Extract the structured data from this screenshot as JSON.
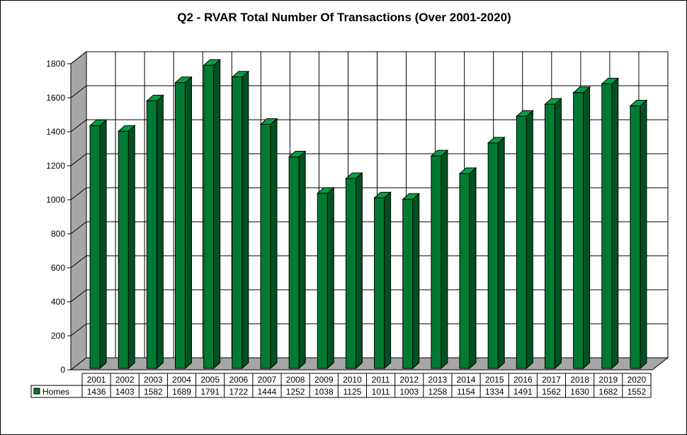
{
  "chart_data": {
    "type": "bar",
    "title": "Q2 - RVAR  Total Number Of Transactions (Over 2001-2020)",
    "categories": [
      "2001",
      "2002",
      "2003",
      "2004",
      "2005",
      "2006",
      "2007",
      "2008",
      "2009",
      "2010",
      "2011",
      "2012",
      "2013",
      "2014",
      "2015",
      "2016",
      "2017",
      "2018",
      "2019",
      "2020"
    ],
    "series": [
      {
        "name": "Homes",
        "color": "#007a33",
        "values": [
          1436,
          1403,
          1582,
          1689,
          1791,
          1722,
          1444,
          1252,
          1038,
          1125,
          1011,
          1003,
          1258,
          1154,
          1334,
          1491,
          1562,
          1630,
          1682,
          1552
        ]
      }
    ],
    "y_ticks": [
      "0",
      "200",
      "400",
      "600",
      "800",
      "1000",
      "1200",
      "1400",
      "1600",
      "1800"
    ],
    "ylim": [
      0,
      1800
    ],
    "grid": true,
    "legend": "data-table"
  }
}
